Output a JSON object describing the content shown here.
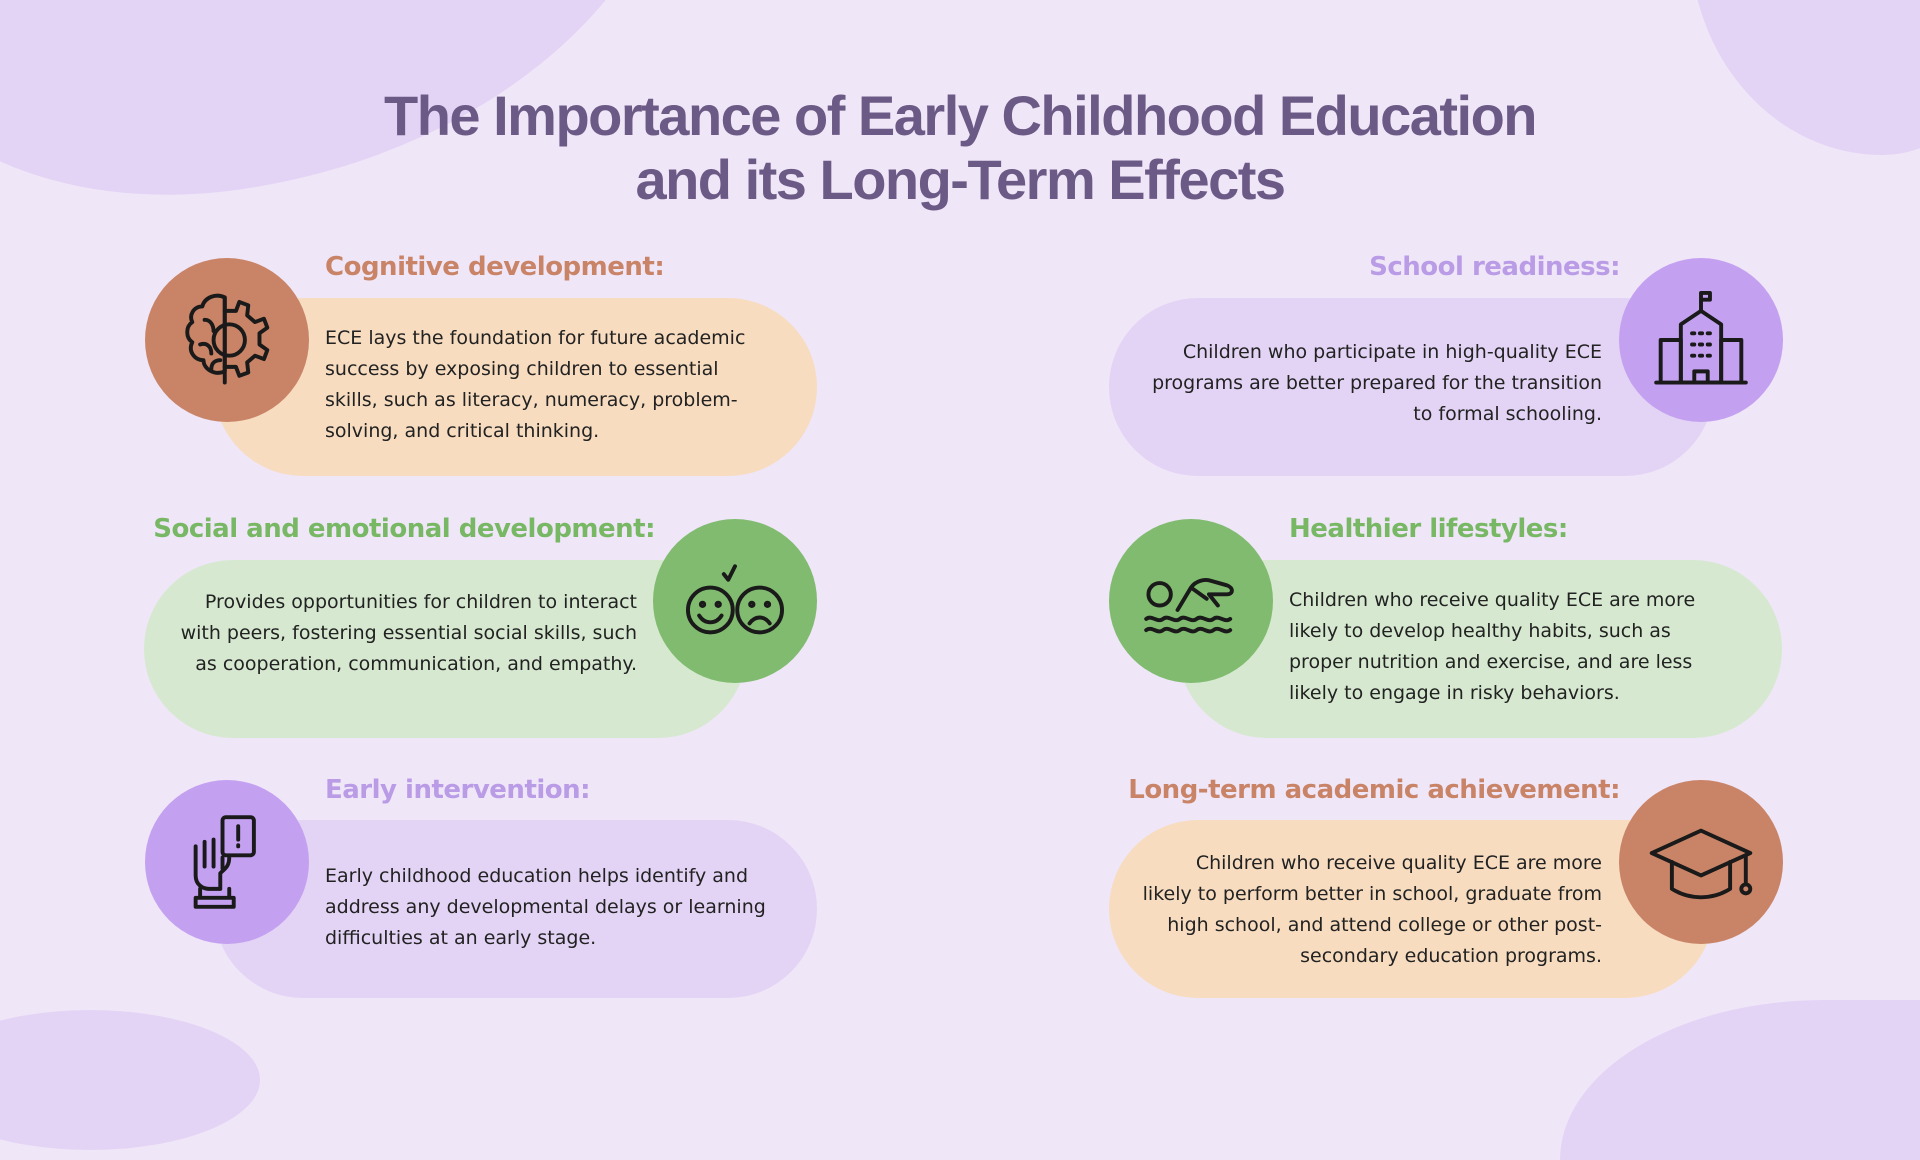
{
  "title_line1": "The Importance of Early Childhood Education",
  "title_line2": "and its Long-Term Effects",
  "colors": {
    "background": "#efe6f8",
    "title": "#6c5a86",
    "orange": "#c98467",
    "purple": "#c4a0f0",
    "green": "#80bb6f",
    "peach": "#f7dcc0",
    "lavender": "#e3d4f5",
    "mint": "#d6e9d0"
  },
  "sections": [
    {
      "heading": "Cognitive development:",
      "icon": "brain-gear-icon",
      "text": "ECE lays the foundation for future academic success by exposing children to essential skills, such as literacy, numeracy, problem-solving, and critical thinking."
    },
    {
      "heading": "Social and emotional development:",
      "icon": "happy-sad-faces-icon",
      "text": "Provides opportunities for children to interact with peers, fostering essential social skills, such as cooperation, communication, and empathy."
    },
    {
      "heading": "Early intervention:",
      "icon": "hand-alert-icon",
      "text": "Early childhood education helps identify and address any developmental delays or learning difficulties at an early stage."
    },
    {
      "heading": "School readiness:",
      "icon": "school-building-icon",
      "text": "Children who participate in high-quality ECE programs are better prepared for the transition to formal schooling."
    },
    {
      "heading": "Healthier lifestyles:",
      "icon": "swimmer-icon",
      "text": "Children who receive quality ECE are more likely to develop healthy habits, such as proper nutrition and exercise, and are less likely to engage in risky behaviors."
    },
    {
      "heading": "Long-term academic achievement:",
      "icon": "graduation-cap-icon",
      "text": "Children who receive quality ECE are more likely to perform better in school, graduate from high school, and attend college or other post-secondary education programs."
    }
  ]
}
